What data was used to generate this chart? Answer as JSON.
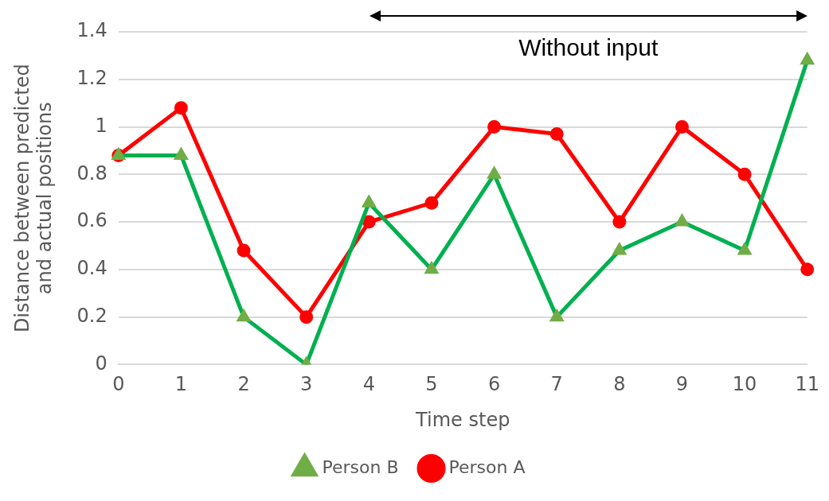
{
  "chart_data": {
    "type": "line",
    "xlabel": "Time step",
    "ylabel": "Distance between predicted and actual positions",
    "categories": [
      "0",
      "1",
      "2",
      "3",
      "4",
      "5",
      "6",
      "7",
      "8",
      "9",
      "10",
      "11"
    ],
    "series": [
      {
        "name": "Person A",
        "color": "#ff0000",
        "marker": "circle",
        "values": [
          0.88,
          1.08,
          0.48,
          0.2,
          0.6,
          0.68,
          1.0,
          0.97,
          0.6,
          1.0,
          0.8,
          0.4
        ]
      },
      {
        "name": "Person B",
        "color": "#00b050",
        "marker": "triangle",
        "values": [
          0.88,
          0.88,
          0.2,
          0,
          0.68,
          0.4,
          0.8,
          0.2,
          0.48,
          0.6,
          0.48,
          1.28
        ]
      }
    ],
    "ylim": [
      0,
      1.4
    ],
    "yticks": [
      0,
      0.2,
      0.4,
      0.6,
      0.8,
      1,
      1.2,
      1.4
    ],
    "grid": "y",
    "legend": "bottom",
    "line_style": "solid",
    "annotations": [
      "Without input"
    ]
  }
}
